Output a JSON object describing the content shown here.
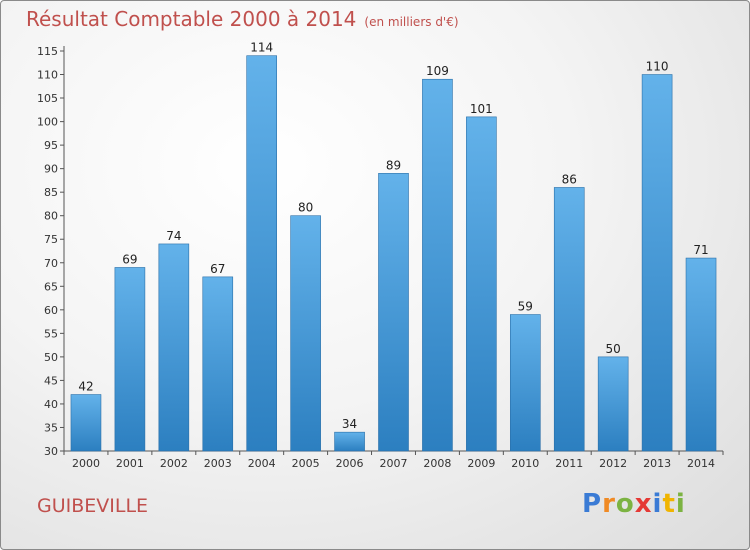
{
  "title": "Résultat Comptable 2000 à 2014",
  "unit": "(en milliers d'€)",
  "commune": "GUIBEVILLE",
  "logo": [
    "P",
    "r",
    "o",
    "x",
    "i",
    "t",
    "i"
  ],
  "logo_colors": [
    "#3a7bd5",
    "#f08a24",
    "#7cb342",
    "#e53935",
    "#3a7bd5",
    "#f0b400",
    "#7cb342"
  ],
  "colors": {
    "title": "#c0504d",
    "bar_light": "#63b2ea",
    "bar_dark": "#2c7fc0"
  },
  "chart_data": {
    "type": "bar",
    "categories": [
      "2000",
      "2001",
      "2002",
      "2003",
      "2004",
      "2005",
      "2006",
      "2007",
      "2008",
      "2009",
      "2010",
      "2011",
      "2012",
      "2013",
      "2014"
    ],
    "values": [
      42,
      69,
      74,
      67,
      114,
      80,
      34,
      89,
      109,
      101,
      59,
      86,
      50,
      110,
      71
    ],
    "ylim": [
      30,
      115
    ],
    "yticks": [
      30,
      35,
      40,
      45,
      50,
      55,
      60,
      65,
      70,
      75,
      80,
      85,
      90,
      95,
      100,
      105,
      110,
      115
    ],
    "grid": false
  }
}
